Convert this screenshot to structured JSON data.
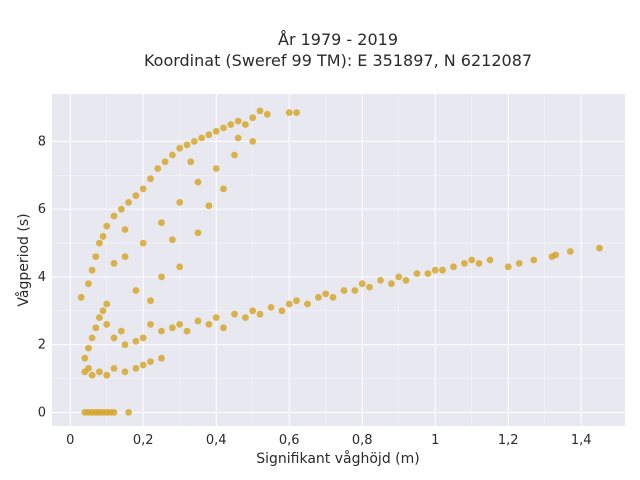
{
  "chart_data": {
    "type": "scatter",
    "title": "År 1979 - 2019",
    "subtitle": "Koordinat (Sweref 99 TM): E 351897, N 6212087",
    "xlabel": "Signifikant våghöjd (m)",
    "ylabel": "Vågperiod (s)",
    "xlim": [
      -0.05,
      1.52
    ],
    "ylim": [
      -0.4,
      9.4
    ],
    "x_ticks": [
      0,
      0.2,
      0.4,
      0.6,
      0.8,
      1,
      1.2,
      1.4
    ],
    "x_tick_labels": [
      "0",
      "0,2",
      "0,4",
      "0,6",
      "0,8",
      "1",
      "1,2",
      "1,4"
    ],
    "y_ticks": [
      0,
      2,
      4,
      6,
      8
    ],
    "y_tick_labels": [
      "0",
      "2",
      "4",
      "6",
      "8"
    ],
    "grid": true,
    "legend": "none",
    "colors": {
      "marker": "#d4a320",
      "plot_bg": "#e8e8f0",
      "grid": "#ffffff",
      "page_bg": "#ffffff"
    },
    "series": [
      {
        "points": [
          [
            0.04,
            0
          ],
          [
            0.05,
            0
          ],
          [
            0.06,
            0
          ],
          [
            0.07,
            0
          ],
          [
            0.08,
            0
          ],
          [
            0.09,
            0
          ],
          [
            0.1,
            0
          ],
          [
            0.11,
            0
          ],
          [
            0.12,
            0
          ],
          [
            0.16,
            0
          ],
          [
            0.04,
            1.2
          ],
          [
            0.05,
            1.3
          ],
          [
            0.06,
            1.1
          ],
          [
            0.08,
            1.2
          ],
          [
            0.1,
            1.1
          ],
          [
            0.12,
            1.3
          ],
          [
            0.15,
            1.2
          ],
          [
            0.18,
            1.3
          ],
          [
            0.2,
            1.4
          ],
          [
            0.22,
            1.5
          ],
          [
            0.25,
            1.6
          ],
          [
            0.04,
            1.6
          ],
          [
            0.05,
            1.9
          ],
          [
            0.06,
            2.2
          ],
          [
            0.07,
            2.5
          ],
          [
            0.08,
            2.8
          ],
          [
            0.09,
            3.0
          ],
          [
            0.1,
            2.6
          ],
          [
            0.12,
            2.2
          ],
          [
            0.14,
            2.4
          ],
          [
            0.15,
            2.0
          ],
          [
            0.18,
            2.1
          ],
          [
            0.2,
            2.2
          ],
          [
            0.22,
            2.6
          ],
          [
            0.25,
            2.4
          ],
          [
            0.28,
            2.5
          ],
          [
            0.3,
            2.6
          ],
          [
            0.32,
            2.4
          ],
          [
            0.35,
            2.7
          ],
          [
            0.38,
            2.6
          ],
          [
            0.4,
            2.8
          ],
          [
            0.42,
            2.5
          ],
          [
            0.45,
            2.9
          ],
          [
            0.48,
            2.8
          ],
          [
            0.5,
            3.0
          ],
          [
            0.52,
            2.9
          ],
          [
            0.55,
            3.1
          ],
          [
            0.58,
            3.0
          ],
          [
            0.6,
            3.2
          ],
          [
            0.62,
            3.3
          ],
          [
            0.65,
            3.2
          ],
          [
            0.68,
            3.4
          ],
          [
            0.7,
            3.5
          ],
          [
            0.72,
            3.4
          ],
          [
            0.75,
            3.6
          ],
          [
            0.78,
            3.6
          ],
          [
            0.8,
            3.8
          ],
          [
            0.82,
            3.7
          ],
          [
            0.85,
            3.9
          ],
          [
            0.88,
            3.8
          ],
          [
            0.9,
            4.0
          ],
          [
            0.92,
            3.9
          ],
          [
            0.95,
            4.1
          ],
          [
            0.98,
            4.1
          ],
          [
            1.0,
            4.2
          ],
          [
            1.02,
            4.2
          ],
          [
            1.05,
            4.3
          ],
          [
            1.08,
            4.4
          ],
          [
            1.1,
            4.5
          ],
          [
            1.12,
            4.4
          ],
          [
            1.15,
            4.5
          ],
          [
            1.2,
            4.3
          ],
          [
            1.23,
            4.4
          ],
          [
            1.27,
            4.5
          ],
          [
            1.32,
            4.6
          ],
          [
            1.33,
            4.65
          ],
          [
            1.37,
            4.75
          ],
          [
            1.45,
            4.85
          ],
          [
            0.03,
            3.4
          ],
          [
            0.05,
            3.8
          ],
          [
            0.06,
            4.2
          ],
          [
            0.07,
            4.6
          ],
          [
            0.08,
            5.0
          ],
          [
            0.09,
            5.2
          ],
          [
            0.1,
            5.5
          ],
          [
            0.12,
            5.8
          ],
          [
            0.14,
            6.0
          ],
          [
            0.15,
            5.4
          ],
          [
            0.16,
            6.2
          ],
          [
            0.18,
            6.4
          ],
          [
            0.2,
            6.6
          ],
          [
            0.22,
            6.9
          ],
          [
            0.24,
            7.2
          ],
          [
            0.26,
            7.4
          ],
          [
            0.28,
            7.6
          ],
          [
            0.3,
            7.8
          ],
          [
            0.32,
            7.9
          ],
          [
            0.34,
            8.0
          ],
          [
            0.36,
            8.1
          ],
          [
            0.38,
            8.2
          ],
          [
            0.4,
            8.3
          ],
          [
            0.42,
            8.4
          ],
          [
            0.44,
            8.5
          ],
          [
            0.46,
            8.6
          ],
          [
            0.48,
            8.5
          ],
          [
            0.5,
            8.7
          ],
          [
            0.52,
            8.9
          ],
          [
            0.54,
            8.8
          ],
          [
            0.6,
            8.85
          ],
          [
            0.62,
            8.85
          ],
          [
            0.15,
            4.6
          ],
          [
            0.2,
            5.0
          ],
          [
            0.25,
            5.6
          ],
          [
            0.3,
            6.2
          ],
          [
            0.35,
            6.8
          ],
          [
            0.4,
            7.2
          ],
          [
            0.45,
            7.6
          ],
          [
            0.5,
            8.0
          ],
          [
            0.25,
            4.0
          ],
          [
            0.3,
            4.3
          ],
          [
            0.35,
            5.3
          ],
          [
            0.38,
            6.1
          ],
          [
            0.42,
            6.6
          ],
          [
            0.22,
            3.3
          ],
          [
            0.18,
            3.6
          ],
          [
            0.28,
            5.1
          ],
          [
            0.12,
            4.4
          ],
          [
            0.1,
            3.2
          ],
          [
            0.33,
            7.4
          ],
          [
            0.46,
            8.1
          ]
        ]
      }
    ]
  }
}
